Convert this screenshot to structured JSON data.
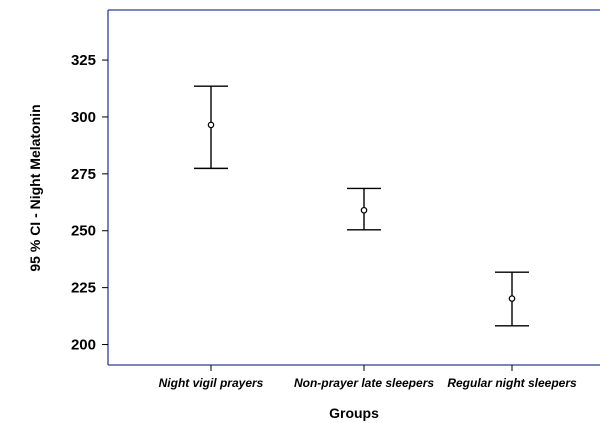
{
  "chart_data": {
    "type": "errorbar",
    "xlabel": "Groups",
    "ylabel": "95 % CI - Night Melatonin",
    "categories": [
      "Night vigil prayers",
      "Non-prayer late sleepers",
      "Regular night sleepers"
    ],
    "means": [
      296.5,
      259,
      220.2
    ],
    "ci_lower": [
      277.4,
      250.4,
      208.2
    ],
    "ci_upper": [
      313.5,
      268.6,
      231.8
    ],
    "yticks": [
      200,
      225,
      250,
      275,
      300,
      325
    ],
    "ylim": [
      191,
      347
    ],
    "grid": false,
    "legend": "none",
    "colors": {
      "frame": "#2f3c9a",
      "marks": "#000000",
      "background": "#ffffff"
    }
  }
}
